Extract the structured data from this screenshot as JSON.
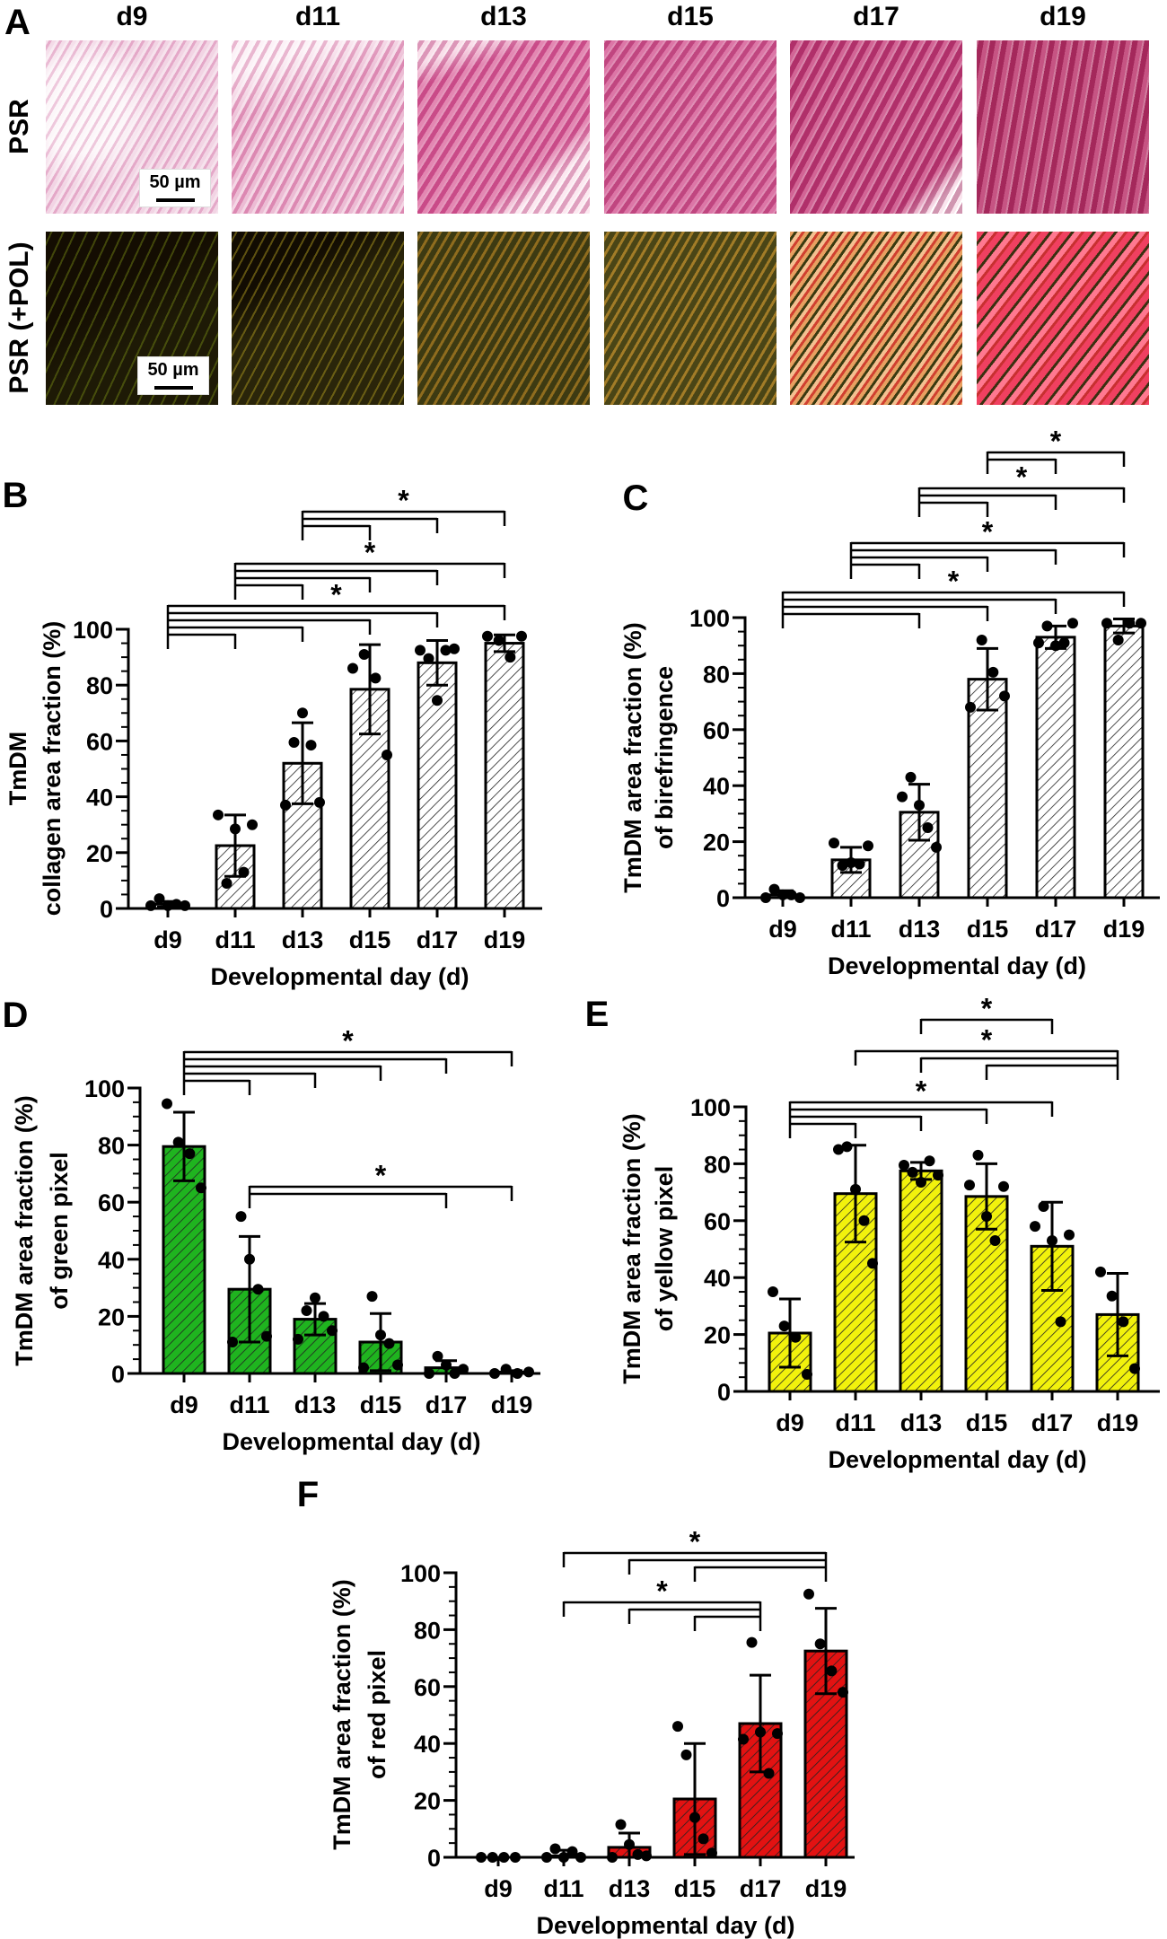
{
  "panel_a": {
    "label": "A",
    "columns": [
      "d9",
      "d11",
      "d13",
      "d15",
      "d17",
      "d19"
    ],
    "rows": [
      "PSR",
      "PSR (+POL)"
    ],
    "scale_bar": "50 µm"
  },
  "chart_data": [
    {
      "panel": "B",
      "type": "bar",
      "categories": [
        "d9",
        "d11",
        "d13",
        "d15",
        "d17",
        "d19"
      ],
      "values": [
        1.5,
        22.5,
        52,
        78.5,
        88,
        95
      ],
      "error_sd": [
        1,
        11,
        14.5,
        16,
        8,
        3
      ],
      "points": [
        [
          1,
          3.5,
          1,
          1.5,
          1
        ],
        [
          33.5,
          9,
          28.5,
          13,
          30
        ],
        [
          37,
          59.5,
          70,
          58.5,
          38
        ],
        [
          86,
          91,
          82.5,
          55
        ],
        [
          92.5,
          89.5,
          74.5,
          92.5,
          93
        ],
        [
          97.5,
          96,
          90,
          97.5
        ]
      ],
      "ylabel": [
        "TmDM",
        "collagen area fraction (%)"
      ],
      "xlabel": "Developmental day (d)",
      "ylim": [
        0,
        100
      ],
      "yticks": [
        "0",
        "20",
        "40",
        "60",
        "80",
        "100"
      ],
      "bar_color": "#ffffff",
      "comparisons": [
        {
          "pairs": [
            [
              "d9",
              "d11"
            ],
            [
              "d9",
              "d13"
            ],
            [
              "d9",
              "d15"
            ],
            [
              "d9",
              "d17"
            ],
            [
              "d9",
              "d19"
            ]
          ],
          "label": "*"
        },
        {
          "pairs": [
            [
              "d11",
              "d13"
            ],
            [
              "d11",
              "d15"
            ],
            [
              "d11",
              "d17"
            ],
            [
              "d11",
              "d19"
            ]
          ],
          "label": "*"
        },
        {
          "pairs": [
            [
              "d13",
              "d15"
            ],
            [
              "d13",
              "d17"
            ],
            [
              "d13",
              "d19"
            ]
          ],
          "label": "*"
        }
      ]
    },
    {
      "panel": "C",
      "type": "bar",
      "categories": [
        "d9",
        "d11",
        "d13",
        "d15",
        "d17",
        "d19"
      ],
      "values": [
        1,
        13.5,
        30.5,
        78,
        93,
        97
      ],
      "error_sd": [
        1.5,
        4.5,
        10,
        11,
        4,
        2.5
      ],
      "points": [
        [
          0,
          3,
          1,
          1,
          0
        ],
        [
          19.5,
          11.5,
          12.5,
          12,
          18.5
        ],
        [
          36,
          43,
          33,
          25,
          18
        ],
        [
          68,
          92,
          80.5,
          72
        ],
        [
          91,
          97,
          90,
          91,
          98
        ],
        [
          98,
          92,
          98,
          98
        ]
      ],
      "ylabel": [
        "TmDM area fraction (%)",
        "of birefringence"
      ],
      "xlabel": "Developmental day (d)",
      "ylim": [
        0,
        100
      ],
      "yticks": [
        "0",
        "20",
        "40",
        "60",
        "80",
        "100"
      ],
      "bar_color": "#ffffff",
      "comparisons": [
        {
          "pairs": [
            [
              "d9",
              "d13"
            ],
            [
              "d9",
              "d15"
            ],
            [
              "d9",
              "d17"
            ],
            [
              "d9",
              "d19"
            ]
          ],
          "label": "*"
        },
        {
          "pairs": [
            [
              "d11",
              "d13"
            ],
            [
              "d11",
              "d15"
            ],
            [
              "d11",
              "d17"
            ],
            [
              "d11",
              "d19"
            ]
          ],
          "label": "*"
        },
        {
          "pairs": [
            [
              "d13",
              "d15"
            ],
            [
              "d13",
              "d17"
            ],
            [
              "d13",
              "d19"
            ]
          ],
          "label": "*"
        },
        {
          "pairs": [
            [
              "d15",
              "d17"
            ],
            [
              "d15",
              "d19"
            ]
          ],
          "label": "*"
        }
      ]
    },
    {
      "panel": "D",
      "type": "bar",
      "categories": [
        "d9",
        "d11",
        "d13",
        "d15",
        "d17",
        "d19"
      ],
      "values": [
        79.5,
        29.5,
        19,
        11,
        2,
        0.5
      ],
      "error_sd": [
        12,
        18.5,
        5.5,
        10,
        2.5,
        0.5
      ],
      "points": [
        [
          94.5,
          81,
          77,
          65
        ],
        [
          11,
          55,
          40,
          29.5,
          13
        ],
        [
          12,
          22,
          26.5,
          20,
          15
        ],
        [
          2,
          27,
          13.5,
          10.5,
          3
        ],
        [
          0,
          6,
          3,
          0,
          1.5
        ],
        [
          0,
          1.5,
          0,
          0.5
        ]
      ],
      "ylabel": [
        "TmDM area fraction (%)",
        "of green pixel"
      ],
      "xlabel": "Developmental day (d)",
      "ylim": [
        0,
        100
      ],
      "yticks": [
        "0",
        "20",
        "40",
        "60",
        "80",
        "100"
      ],
      "bar_color": "#1fb41f",
      "comparisons": [
        {
          "pairs": [
            [
              "d9",
              "d11"
            ],
            [
              "d9",
              "d13"
            ],
            [
              "d9",
              "d15"
            ],
            [
              "d9",
              "d17"
            ],
            [
              "d9",
              "d19"
            ]
          ],
          "label": "*"
        },
        {
          "pairs": [
            [
              "d11",
              "d17"
            ],
            [
              "d11",
              "d19"
            ]
          ],
          "label": "*"
        }
      ]
    },
    {
      "panel": "E",
      "type": "bar",
      "categories": [
        "d9",
        "d11",
        "d13",
        "d15",
        "d17",
        "d19"
      ],
      "values": [
        20.5,
        69.5,
        77.5,
        68.5,
        51,
        27
      ],
      "error_sd": [
        12,
        17,
        3,
        11.5,
        15.5,
        14.5
      ],
      "points": [
        [
          35,
          23,
          19,
          6
        ],
        [
          85,
          86,
          71,
          60,
          45
        ],
        [
          79.5,
          77,
          73.5,
          81,
          76
        ],
        [
          72.5,
          83,
          61.5,
          53,
          72
        ],
        [
          58,
          65,
          53,
          24.5,
          55
        ],
        [
          42,
          33.5,
          24.5,
          8
        ]
      ],
      "ylabel": [
        "TmDM area fraction (%)",
        "of yellow pixel"
      ],
      "xlabel": "Developmental day (d)",
      "ylim": [
        0,
        100
      ],
      "yticks": [
        "0",
        "20",
        "40",
        "60",
        "80",
        "100"
      ],
      "bar_color": "#f2f20c",
      "comparisons": [
        {
          "pairs": [
            [
              "d9",
              "d11"
            ],
            [
              "d9",
              "d13"
            ],
            [
              "d9",
              "d15"
            ],
            [
              "d9",
              "d17"
            ]
          ],
          "label": "*"
        },
        {
          "pairs": [
            [
              "d15",
              "d19"
            ],
            [
              "d13",
              "d19"
            ],
            [
              "d11",
              "d19"
            ]
          ],
          "label": "*"
        },
        {
          "pairs": [
            [
              "d13",
              "d17"
            ]
          ],
          "label": "*"
        }
      ]
    },
    {
      "panel": "F",
      "type": "bar",
      "categories": [
        "d9",
        "d11",
        "d13",
        "d15",
        "d17",
        "d19"
      ],
      "values": [
        0,
        0.5,
        3.5,
        20.5,
        47,
        72.5
      ],
      "error_sd": [
        0,
        2,
        5,
        19.5,
        17,
        15
      ],
      "points": [
        [
          0,
          0,
          0,
          0
        ],
        [
          0,
          3,
          0,
          2,
          0
        ],
        [
          0,
          11.5,
          4.5,
          1,
          0.5
        ],
        [
          46,
          36,
          14,
          6.5,
          1.5
        ],
        [
          41.5,
          75.5,
          44,
          29.5,
          43.5
        ],
        [
          92.5,
          75,
          65.5,
          58
        ]
      ],
      "ylabel": [
        "TmDM area fraction (%)",
        "of red pixel"
      ],
      "xlabel": "Developmental day (d)",
      "ylim": [
        0,
        100
      ],
      "yticks": [
        "0",
        "20",
        "40",
        "60",
        "80",
        "100"
      ],
      "bar_color": "#e31212",
      "comparisons": [
        {
          "pairs": [
            [
              "d15",
              "d17"
            ],
            [
              "d13",
              "d17"
            ],
            [
              "d11",
              "d17"
            ]
          ],
          "label": "*"
        },
        {
          "pairs": [
            [
              "d15",
              "d19"
            ],
            [
              "d13",
              "d19"
            ],
            [
              "d11",
              "d19"
            ]
          ],
          "label": "*"
        }
      ]
    }
  ]
}
